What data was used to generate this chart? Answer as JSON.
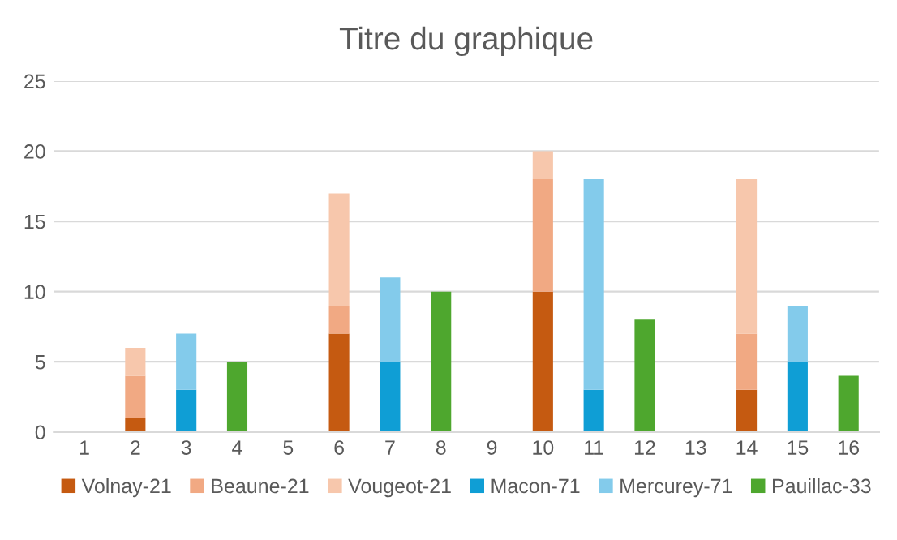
{
  "chart_data": {
    "type": "bar",
    "title": "Titre du graphique",
    "categories": [
      "1",
      "2",
      "3",
      "4",
      "5",
      "6",
      "7",
      "8",
      "9",
      "10",
      "11",
      "12",
      "13",
      "14",
      "15",
      "16"
    ],
    "stacked": true,
    "series": [
      {
        "name": "Volnay-21",
        "color": "#c55a11",
        "values": [
          null,
          1,
          null,
          null,
          null,
          7,
          null,
          null,
          null,
          10,
          null,
          null,
          null,
          3,
          null,
          null
        ]
      },
      {
        "name": "Beaune-21",
        "color": "#f1a983",
        "values": [
          null,
          3,
          null,
          null,
          null,
          2,
          null,
          null,
          null,
          8,
          null,
          null,
          null,
          4,
          null,
          null
        ]
      },
      {
        "name": "Vougeot-21",
        "color": "#f7c7ac",
        "values": [
          null,
          2,
          null,
          null,
          null,
          8,
          null,
          null,
          null,
          2,
          null,
          null,
          null,
          11,
          null,
          null
        ]
      },
      {
        "name": "Macon-71",
        "color": "#0f9ed5",
        "values": [
          null,
          null,
          3,
          null,
          null,
          null,
          5,
          null,
          null,
          null,
          3,
          null,
          null,
          null,
          5,
          null
        ]
      },
      {
        "name": "Mercurey-71",
        "color": "#83cbeb",
        "values": [
          null,
          null,
          4,
          null,
          null,
          null,
          6,
          null,
          null,
          null,
          15,
          null,
          null,
          null,
          4,
          null
        ]
      },
      {
        "name": "Pauillac-33",
        "color": "#4ea72e",
        "values": [
          null,
          null,
          null,
          5,
          null,
          null,
          null,
          10,
          null,
          null,
          null,
          8,
          null,
          null,
          null,
          4
        ]
      }
    ],
    "ylim": [
      0,
      25
    ],
    "yticks": [
      0,
      5,
      10,
      15,
      20,
      25
    ],
    "grid": "y",
    "legend": "bottom"
  }
}
